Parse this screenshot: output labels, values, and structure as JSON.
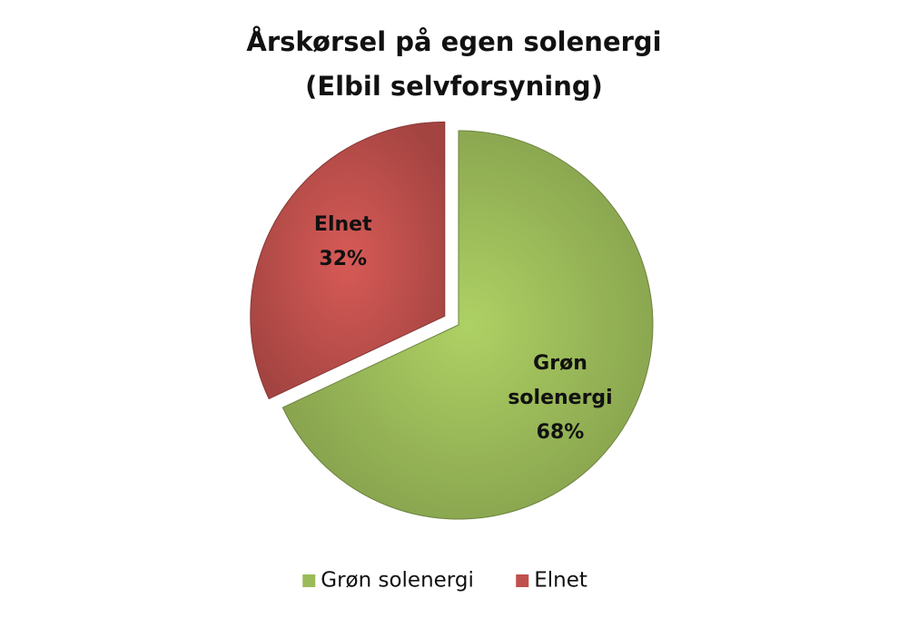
{
  "chart_data": {
    "type": "pie",
    "title": "Årskørsel på egen solenergi",
    "subtitle": "(Elbil selvforsyning)",
    "categories": [
      "Grøn solenergi",
      "Elnet"
    ],
    "values": [
      68,
      32
    ],
    "value_labels": [
      "68%",
      "32%"
    ],
    "colors": [
      "#9bbb59",
      "#c0504d"
    ],
    "legend": "bottom"
  }
}
